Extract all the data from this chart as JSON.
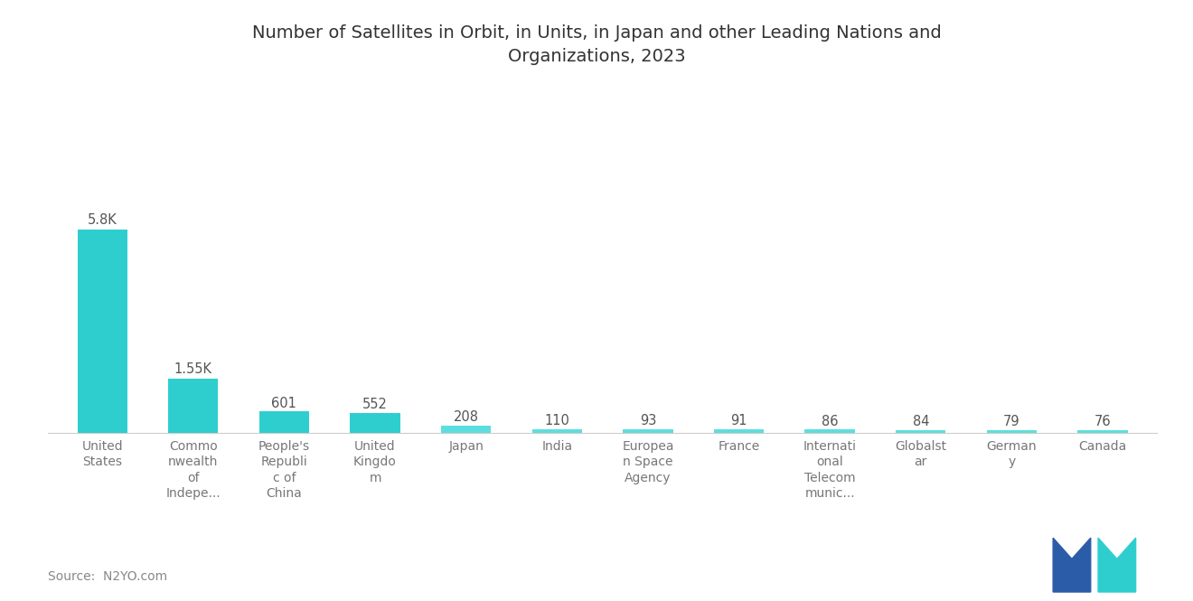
{
  "title": "Number of Satellites in Orbit, in Units, in Japan and other Leading Nations and\nOrganizations, 2023",
  "categories": [
    "United\nStates",
    "Commo\nnwealth\nof\nIndepe...",
    "People's\nRepubli\nc of\nChina",
    "United\nKingdo\nm",
    "Japan",
    "India",
    "Europea\nn Space\nAgency",
    "France",
    "Internati\nonal\nTelecom\nmunic...",
    "Globalst\nar",
    "German\ny",
    "Canada"
  ],
  "values": [
    5800,
    1550,
    601,
    552,
    208,
    110,
    93,
    91,
    86,
    84,
    79,
    76
  ],
  "labels": [
    "5.8K",
    "1.55K",
    "601",
    "552",
    "208",
    "110",
    "93",
    "91",
    "86",
    "84",
    "79",
    "76"
  ],
  "bar_color_large": "#2ECECE",
  "bar_color_small": "#5DDEDE",
  "source_text": "Source:  N2YO.com",
  "background_color": "#ffffff",
  "title_fontsize": 14,
  "label_fontsize": 10.5,
  "tick_fontsize": 10,
  "source_fontsize": 10,
  "ylim": [
    0,
    7200
  ],
  "bar_width": 0.55
}
